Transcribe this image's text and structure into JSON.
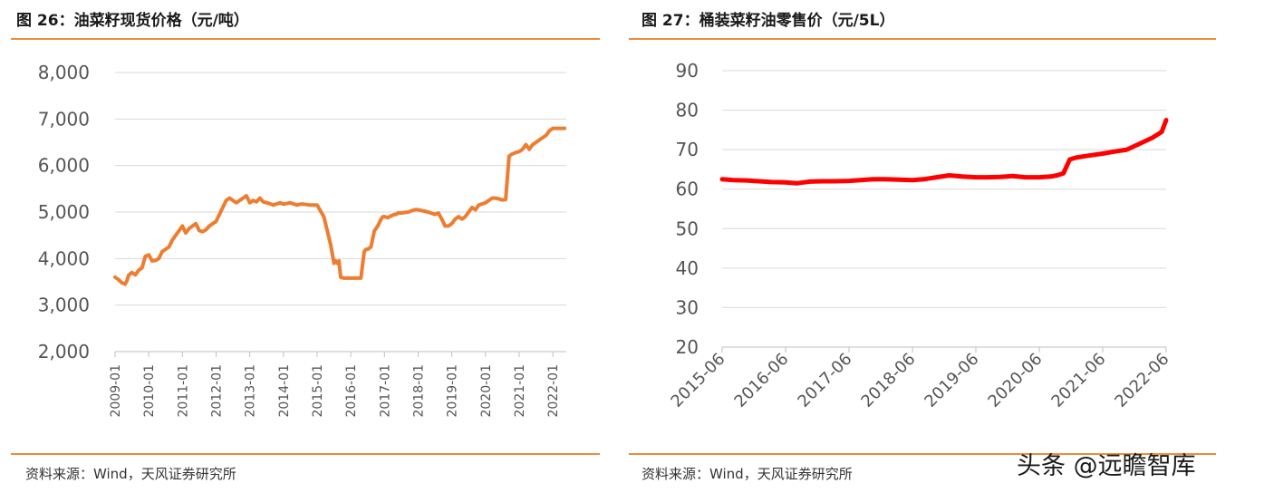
{
  "charts": {
    "left": {
      "title": "图 26：油菜籽现货价格（元/吨）",
      "source": "资料来源：Wind，天风证券研究所"
    },
    "right": {
      "title": "图 27：桶装菜籽油零售价（元/5L）",
      "source": "资料来源：Wind，天风证券研究所"
    }
  },
  "watermark": "头条 @远瞻智库",
  "colors": {
    "rule": "#e98d3b",
    "left_series": "#ed7d31",
    "right_series": "#ff0000",
    "grid": "#d9d9d9"
  },
  "chart_data": [
    {
      "type": "line",
      "title": "图 26：油菜籽现货价格（元/吨）",
      "x_tick_labels": [
        "2009-01",
        "2010-01",
        "2011-01",
        "2012-01",
        "2013-01",
        "2014-01",
        "2015-01",
        "2016-01",
        "2017-01",
        "2018-01",
        "2019-01",
        "2020-01",
        "2021-01",
        "2022-01"
      ],
      "y_tick_labels": [
        "2,000",
        "3,000",
        "4,000",
        "5,000",
        "6,000",
        "7,000",
        "8,000"
      ],
      "ylim": [
        2000,
        8000
      ],
      "xlim": [
        2009.0,
        2022.4
      ],
      "grid": true,
      "series": [
        {
          "x": [
            2009.0,
            2009.1,
            2009.2,
            2009.3,
            2009.35,
            2009.4,
            2009.5,
            2009.6,
            2009.7,
            2009.8,
            2009.9,
            2010.0,
            2010.1,
            2010.2,
            2010.3,
            2010.4,
            2010.5,
            2010.6,
            2010.7,
            2010.8,
            2010.9,
            2011.0,
            2011.1,
            2011.2,
            2011.3,
            2011.4,
            2011.5,
            2011.6,
            2011.7,
            2011.8,
            2011.9,
            2012.0,
            2012.2,
            2012.3,
            2012.4,
            2012.5,
            2012.6,
            2012.7,
            2012.8,
            2012.9,
            2013.0,
            2013.1,
            2013.2,
            2013.3,
            2013.4,
            2013.5,
            2013.6,
            2013.7,
            2013.9,
            2014.0,
            2014.2,
            2014.4,
            2014.5,
            2014.6,
            2014.8,
            2015.0,
            2015.2,
            2015.4,
            2015.5,
            2015.55,
            2015.6,
            2015.65,
            2015.7,
            2015.8,
            2015.9,
            2016.0,
            2016.3,
            2016.4,
            2016.45,
            2016.5,
            2016.6,
            2016.7,
            2016.8,
            2016.9,
            2016.95,
            2017.0,
            2017.1,
            2017.2,
            2017.3,
            2017.35,
            2017.4,
            2017.5,
            2017.7,
            2017.9,
            2018.0,
            2018.3,
            2018.5,
            2018.6,
            2018.7,
            2018.8,
            2018.9,
            2019.0,
            2019.1,
            2019.2,
            2019.3,
            2019.4,
            2019.5,
            2019.6,
            2019.7,
            2019.8,
            2020.0,
            2020.1,
            2020.2,
            2020.3,
            2020.4,
            2020.5,
            2020.6,
            2020.7,
            2020.8,
            2020.9,
            2021.0,
            2021.1,
            2021.2,
            2021.3,
            2021.35,
            2021.4,
            2021.5,
            2021.6,
            2021.7,
            2021.8,
            2021.9,
            2022.0,
            2022.1,
            2022.2,
            2022.25,
            2022.3,
            2022.35
          ],
          "values": [
            3600,
            3550,
            3480,
            3450,
            3520,
            3640,
            3700,
            3650,
            3750,
            3800,
            4050,
            4080,
            3950,
            3960,
            4000,
            4150,
            4200,
            4250,
            4400,
            4500,
            4600,
            4700,
            4550,
            4650,
            4700,
            4750,
            4600,
            4580,
            4620,
            4700,
            4750,
            4800,
            5100,
            5250,
            5300,
            5250,
            5200,
            5250,
            5300,
            5350,
            5200,
            5250,
            5220,
            5300,
            5220,
            5200,
            5180,
            5150,
            5200,
            5170,
            5200,
            5150,
            5170,
            5170,
            5150,
            5150,
            4900,
            4300,
            3900,
            3950,
            3900,
            3950,
            3600,
            3580,
            3580,
            3580,
            3580,
            4150,
            4200,
            4200,
            4250,
            4600,
            4700,
            4850,
            4900,
            4900,
            4880,
            4920,
            4950,
            4950,
            4980,
            4980,
            5000,
            5050,
            5050,
            5000,
            4950,
            4980,
            4850,
            4700,
            4700,
            4750,
            4850,
            4900,
            4850,
            4900,
            5000,
            5100,
            5050,
            5150,
            5200,
            5250,
            5300,
            5300,
            5280,
            5260,
            5270,
            6200,
            6250,
            6280,
            6300,
            6350,
            6450,
            6350,
            6400,
            6450,
            6500,
            6550,
            6600,
            6650,
            6750,
            6800,
            6800,
            6800,
            6800,
            6800,
            6800
          ],
          "color": "#ed7d31"
        }
      ]
    },
    {
      "type": "line",
      "title": "图 27：桶装菜籽油零售价（元/5L）",
      "x_tick_labels": [
        "2015-06",
        "2016-06",
        "2017-06",
        "2018-06",
        "2019-06",
        "2020-06",
        "2021-06",
        "2022-06"
      ],
      "y_tick_labels": [
        "20",
        "30",
        "40",
        "50",
        "60",
        "70",
        "80",
        "90"
      ],
      "ylim": [
        20,
        90
      ],
      "xlim": [
        2015.42,
        2022.42
      ],
      "grid": true,
      "series": [
        {
          "x": [
            2015.42,
            2015.6,
            2015.8,
            2016.0,
            2016.2,
            2016.42,
            2016.6,
            2016.8,
            2017.0,
            2017.2,
            2017.42,
            2017.6,
            2017.8,
            2018.0,
            2018.2,
            2018.42,
            2018.6,
            2018.8,
            2019.0,
            2019.2,
            2019.42,
            2019.6,
            2019.8,
            2020.0,
            2020.2,
            2020.42,
            2020.6,
            2020.7,
            2020.8,
            2020.9,
            2021.0,
            2021.2,
            2021.42,
            2021.6,
            2021.8,
            2022.0,
            2022.2,
            2022.3,
            2022.35,
            2022.42
          ],
          "values": [
            62.5,
            62.3,
            62.2,
            62.0,
            61.8,
            61.7,
            61.5,
            61.9,
            62.0,
            62.0,
            62.1,
            62.3,
            62.5,
            62.5,
            62.4,
            62.3,
            62.5,
            63.0,
            63.5,
            63.2,
            63.0,
            63.0,
            63.1,
            63.3,
            63.0,
            63.0,
            63.2,
            63.5,
            64.0,
            67.5,
            68.0,
            68.5,
            69.0,
            69.5,
            70.0,
            71.5,
            73.0,
            74.0,
            74.5,
            77.5
          ],
          "color": "#ff0000"
        }
      ]
    }
  ]
}
